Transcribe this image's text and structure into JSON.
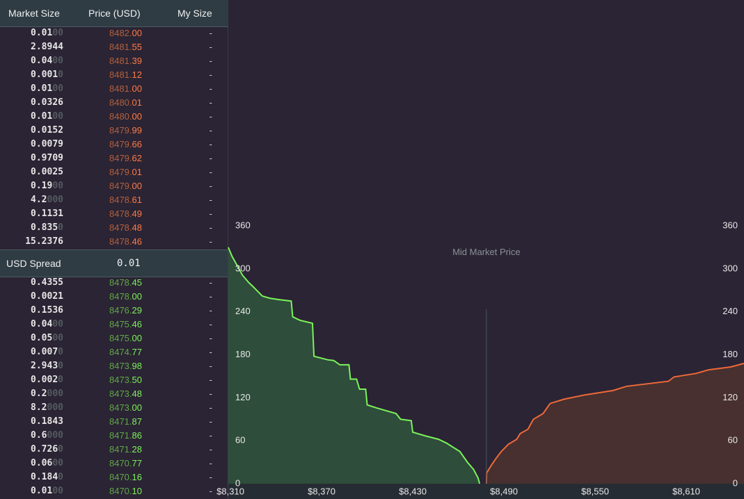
{
  "order_book": {
    "headers": {
      "size": "Market Size",
      "price": "Price (USD)",
      "my_size": "My Size"
    },
    "asks": [
      {
        "size": "0.01",
        "pad": "00",
        "price": "8482.",
        "decimals": "00",
        "my_size": "-"
      },
      {
        "size": "2.8944",
        "price": "8481.",
        "decimals": "55",
        "my_size": "-"
      },
      {
        "size": "0.04",
        "pad": "00",
        "price": "8481.",
        "decimals": "39",
        "my_size": "-"
      },
      {
        "size": "0.001",
        "pad": "0",
        "price": "8481.",
        "decimals": "12",
        "my_size": "-"
      },
      {
        "size": "0.01",
        "pad": "00",
        "price": "8481.",
        "decimals": "00",
        "my_size": "-"
      },
      {
        "size": "0.0326",
        "price": "8480.",
        "decimals": "01",
        "my_size": "-"
      },
      {
        "size": "0.01",
        "pad": "00",
        "price": "8480.",
        "decimals": "00",
        "my_size": "-"
      },
      {
        "size": "0.0152",
        "price": "8479.",
        "decimals": "99",
        "my_size": "-"
      },
      {
        "size": "0.0079",
        "price": "8479.",
        "decimals": "66",
        "my_size": "-"
      },
      {
        "size": "0.9709",
        "price": "8479.",
        "decimals": "62",
        "my_size": "-"
      },
      {
        "size": "0.0025",
        "price": "8479.",
        "decimals": "01",
        "my_size": "-"
      },
      {
        "size": "0.19",
        "pad": "00",
        "price": "8479.",
        "decimals": "00",
        "my_size": "-"
      },
      {
        "size": "4.2",
        "pad": "000",
        "price": "8478.",
        "decimals": "61",
        "my_size": "-"
      },
      {
        "size": "0.1131",
        "price": "8478.",
        "decimals": "49",
        "my_size": "-"
      },
      {
        "size": "0.835",
        "pad": "0",
        "price": "8478.",
        "decimals": "48",
        "my_size": "-"
      },
      {
        "size": "15.2376",
        "price": "8478.",
        "decimals": "46",
        "my_size": "-"
      }
    ],
    "spread": {
      "label": "USD Spread",
      "value": "0.01"
    },
    "bids": [
      {
        "size": "0.4355",
        "price": "8478.",
        "decimals": "45",
        "my_size": "-"
      },
      {
        "size": "0.0021",
        "price": "8478.",
        "decimals": "00",
        "my_size": "-"
      },
      {
        "size": "0.1536",
        "price": "8476.",
        "decimals": "29",
        "my_size": "-"
      },
      {
        "size": "0.04",
        "pad": "00",
        "price": "8475.",
        "decimals": "46",
        "my_size": "-"
      },
      {
        "size": "0.05",
        "pad": "00",
        "price": "8475.",
        "decimals": "00",
        "my_size": "-"
      },
      {
        "size": "0.007",
        "pad": "0",
        "price": "8474.",
        "decimals": "77",
        "my_size": "-"
      },
      {
        "size": "2.943",
        "pad": "0",
        "price": "8473.",
        "decimals": "98",
        "my_size": "-"
      },
      {
        "size": "0.002",
        "pad": "0",
        "price": "8473.",
        "decimals": "50",
        "my_size": "-"
      },
      {
        "size": "0.2",
        "pad": "000",
        "price": "8473.",
        "decimals": "48",
        "my_size": "-"
      },
      {
        "size": "8.2",
        "pad": "000",
        "price": "8473.",
        "decimals": "00",
        "my_size": "-"
      },
      {
        "size": "0.1843",
        "price": "8471.",
        "decimals": "87",
        "my_size": "-"
      },
      {
        "size": "0.6",
        "pad": "000",
        "price": "8471.",
        "decimals": "86",
        "my_size": "-"
      },
      {
        "size": "0.726",
        "pad": "0",
        "price": "8471.",
        "decimals": "28",
        "my_size": "-"
      },
      {
        "size": "0.06",
        "pad": "00",
        "price": "8470.",
        "decimals": "77",
        "my_size": "-"
      },
      {
        "size": "0.184",
        "pad": "0",
        "price": "8470.",
        "decimals": "16",
        "my_size": "-"
      },
      {
        "size": "0.01",
        "pad": "00",
        "price": "8470.",
        "decimals": "10",
        "my_size": "-"
      }
    ]
  },
  "chart_data": {
    "type": "line",
    "annotation": {
      "text": "Mid Market Price",
      "x": 8478.46
    },
    "xlim": [
      8308.6,
      8648
    ],
    "ylim": [
      0,
      360
    ],
    "xticks": [
      {
        "value": 8310,
        "label": "$8,310"
      },
      {
        "value": 8370,
        "label": "$8,370"
      },
      {
        "value": 8430,
        "label": "$8,430"
      },
      {
        "value": 8490,
        "label": "$8,490"
      },
      {
        "value": 8550,
        "label": "$8,550"
      },
      {
        "value": 8610,
        "label": "$8,610"
      }
    ],
    "yticks": [
      0,
      60,
      120,
      180,
      240,
      300,
      360
    ],
    "series": [
      {
        "color": "#7cf25a",
        "fill": "#2e4d3b",
        "x": [
          8308.6,
          8311,
          8318,
          8322,
          8325,
          8331,
          8336,
          8342,
          8350,
          8351,
          8356,
          8364,
          8365,
          8374,
          8378,
          8382,
          8388,
          8389,
          8393,
          8395,
          8399,
          8400,
          8406,
          8419,
          8422,
          8429,
          8430,
          8438,
          8447,
          8452,
          8461,
          8466,
          8470,
          8473,
          8474
        ],
        "values": [
          330,
          318,
          291,
          281,
          275,
          262,
          259,
          257,
          255,
          233,
          228,
          224,
          178,
          173,
          172,
          166,
          166,
          146,
          146,
          132,
          132,
          110,
          106,
          98,
          90,
          88,
          72,
          67,
          62,
          57,
          45,
          30,
          20,
          8,
          0
        ]
      },
      {
        "color": "#f0693a",
        "fill": "#47302f",
        "x": [
          8478.46,
          8478.6,
          8481.5,
          8484.7,
          8488.3,
          8492.9,
          8498.4,
          8500.7,
          8505.8,
          8509.4,
          8515.8,
          8520.4,
          8529.6,
          8543.3,
          8561.6,
          8570.8,
          8598.3,
          8601.9,
          8616.5,
          8624.8,
          8639.3,
          8648
        ],
        "values": [
          0,
          15,
          25,
          35,
          45,
          55,
          62,
          70,
          76,
          90,
          98,
          112,
          118,
          124,
          130,
          136,
          143,
          149,
          154,
          159,
          163,
          168
        ]
      }
    ]
  }
}
